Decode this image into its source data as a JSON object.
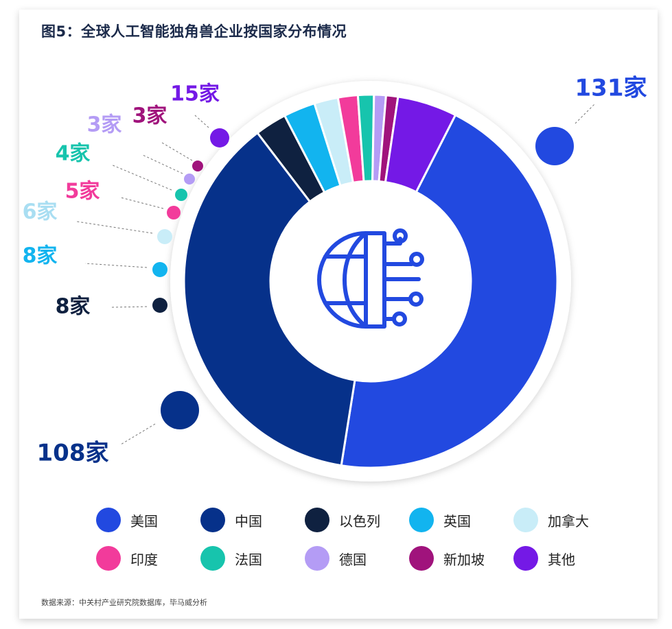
{
  "title": "图5：全球人工智能独角兽企业按国家分布情况",
  "source": "数据来源：中关村产业研究院数据库，毕马威分析",
  "chart_data": {
    "type": "pie",
    "variant": "donut",
    "title": "图5：全球人工智能独角兽企业按国家分布情况",
    "unit": "家",
    "center_icon": "globe-circuit-icon",
    "categories": [
      "美国",
      "中国",
      "以色列",
      "英国",
      "加拿大",
      "印度",
      "法国",
      "德国",
      "新加坡",
      "其他"
    ],
    "values": [
      131,
      108,
      8,
      8,
      6,
      5,
      4,
      3,
      3,
      15
    ],
    "labels": [
      "131家",
      "108家",
      "8家",
      "8家",
      "6家",
      "5家",
      "4家",
      "3家",
      "3家",
      "15家"
    ],
    "colors": [
      "#2249e0",
      "#06318a",
      "#0f2140",
      "#12b4ef",
      "#c9edf8",
      "#f23b9b",
      "#17c4ad",
      "#b49cf5",
      "#a0137c",
      "#7419e6"
    ],
    "legend_position": "bottom"
  }
}
